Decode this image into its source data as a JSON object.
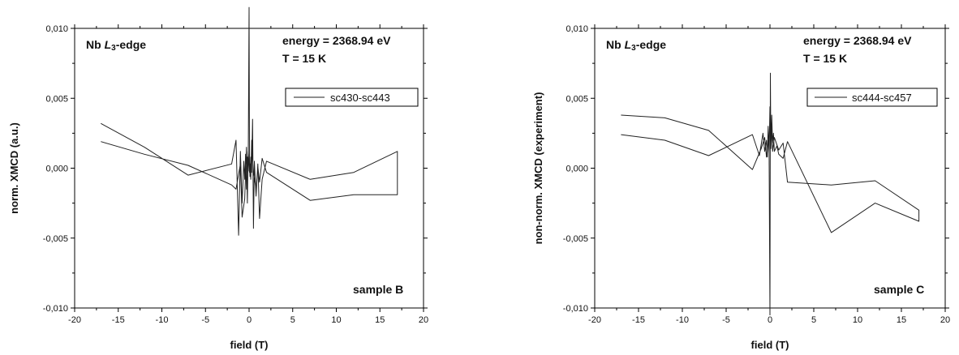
{
  "chart_data": [
    {
      "type": "line",
      "xlabel": "field (T)",
      "ylabel": "norm. XMCD (a.u.)",
      "xlim": [
        -20,
        20
      ],
      "ylim": [
        -0.01,
        0.01
      ],
      "xticks": [
        "-20",
        "-15",
        "-10",
        "-5",
        "0",
        "5",
        "10",
        "15",
        "20"
      ],
      "yticks": [
        "-0,010",
        "-0,005",
        "0,000",
        "0,005",
        "0,010"
      ],
      "annotations": {
        "edge_prefix": "Nb ",
        "edge_L": "L",
        "edge_sub": "3",
        "edge_suffix": "-edge",
        "energy": "energy = 2368.94 eV",
        "temperature": "T = 15 K",
        "sample": "sample B"
      },
      "legend_position": "top-right",
      "series": [
        {
          "name": "sc430-sc443",
          "color": "#222222",
          "x": [
            -17,
            -12,
            -7,
            -2,
            -1.5,
            -1.2,
            -1,
            -0.8,
            -0.6,
            -0.5,
            -0.4,
            -0.3,
            -0.2,
            -0.1,
            0,
            0.05,
            0.1,
            0.2,
            0.3,
            0.4,
            0.5,
            0.6,
            0.8,
            1,
            1.2,
            1.5,
            2,
            7,
            12,
            17,
            17,
            12,
            7,
            2,
            1.5,
            1.2,
            1,
            0.8,
            0.5,
            0.3,
            0.2,
            0.1,
            0.05,
            0,
            -0.1,
            -0.2,
            -0.3,
            -0.5,
            -0.8,
            -1,
            -1.5,
            -2,
            -7,
            -12,
            -17
          ],
          "y": [
            0.0032,
            0.0015,
            -0.0005,
            0.0003,
            0.002,
            -0.0048,
            0.0012,
            -0.0025,
            0.0005,
            -0.0008,
            0.001,
            -0.0015,
            0.0008,
            -0.0002,
            0.0115,
            0.0003,
            -0.0006,
            0.0008,
            -0.0003,
            0.0035,
            -0.0043,
            0.0005,
            -0.002,
            0.0003,
            -0.0036,
            -0.0008,
            0.0005,
            -0.0008,
            -0.0003,
            0.0012,
            -0.0019,
            -0.0019,
            -0.0023,
            -0.0003,
            0.0007,
            -0.001,
            0.0001,
            -0.0015,
            -0.0003,
            0.002,
            -0.0008,
            0.0003,
            -0.0003,
            0.0002,
            0.0012,
            -0.0025,
            0.0015,
            -0.0022,
            -0.0035,
            0.0003,
            -0.0015,
            -0.0012,
            0.0002,
            0.001,
            0.0019
          ]
        }
      ]
    },
    {
      "type": "line",
      "xlabel": "field (T)",
      "ylabel": "non-norm. XMCD (experiment)",
      "xlim": [
        -20,
        20
      ],
      "ylim": [
        -0.01,
        0.01
      ],
      "xticks": [
        "-20",
        "-15",
        "-10",
        "-5",
        "0",
        "5",
        "10",
        "15",
        "20"
      ],
      "yticks": [
        "-0,010",
        "-0,005",
        "0,000",
        "0,005",
        "0,010"
      ],
      "annotations": {
        "edge_prefix": "Nb ",
        "edge_L": "L",
        "edge_sub": "3",
        "edge_suffix": "-edge",
        "energy": "energy = 2368.94 eV",
        "temperature": "T = 15 K",
        "sample": "sample C"
      },
      "legend_position": "top-right",
      "series": [
        {
          "name": "sc444-sc457",
          "color": "#222222",
          "x": [
            -17,
            -12,
            -7,
            -2,
            -1.2,
            -0.8,
            -0.6,
            -0.4,
            -0.3,
            -0.2,
            -0.1,
            0,
            0.05,
            0.1,
            0.2,
            0.3,
            0.4,
            0.5,
            0.8,
            1,
            1.5,
            2,
            7,
            12,
            17,
            17,
            12,
            7,
            2,
            1.5,
            1,
            0.5,
            0.3,
            0.2,
            0.1,
            0,
            -0.1,
            -0.2,
            -0.4,
            -0.6,
            -1,
            -2,
            -7,
            -12,
            -17
          ],
          "y": [
            0.0024,
            0.002,
            0.0009,
            0.0024,
            0.0009,
            0.0025,
            0.0012,
            0.002,
            0.0008,
            0.003,
            0.0015,
            -0.0105,
            0.0068,
            0.0014,
            0.0038,
            0.0018,
            0.0025,
            0.0012,
            0.0016,
            0.001,
            0.0007,
            0.0019,
            -0.0046,
            -0.0025,
            -0.0038,
            -0.003,
            -0.0009,
            -0.0012,
            -0.001,
            0.0018,
            0.0013,
            0.0022,
            0.0012,
            0.0028,
            0.0016,
            0.0044,
            0.0011,
            0.002,
            0.0008,
            0.0022,
            0.0014,
            -0.0001,
            0.0027,
            0.0036,
            0.0038
          ]
        }
      ]
    }
  ]
}
